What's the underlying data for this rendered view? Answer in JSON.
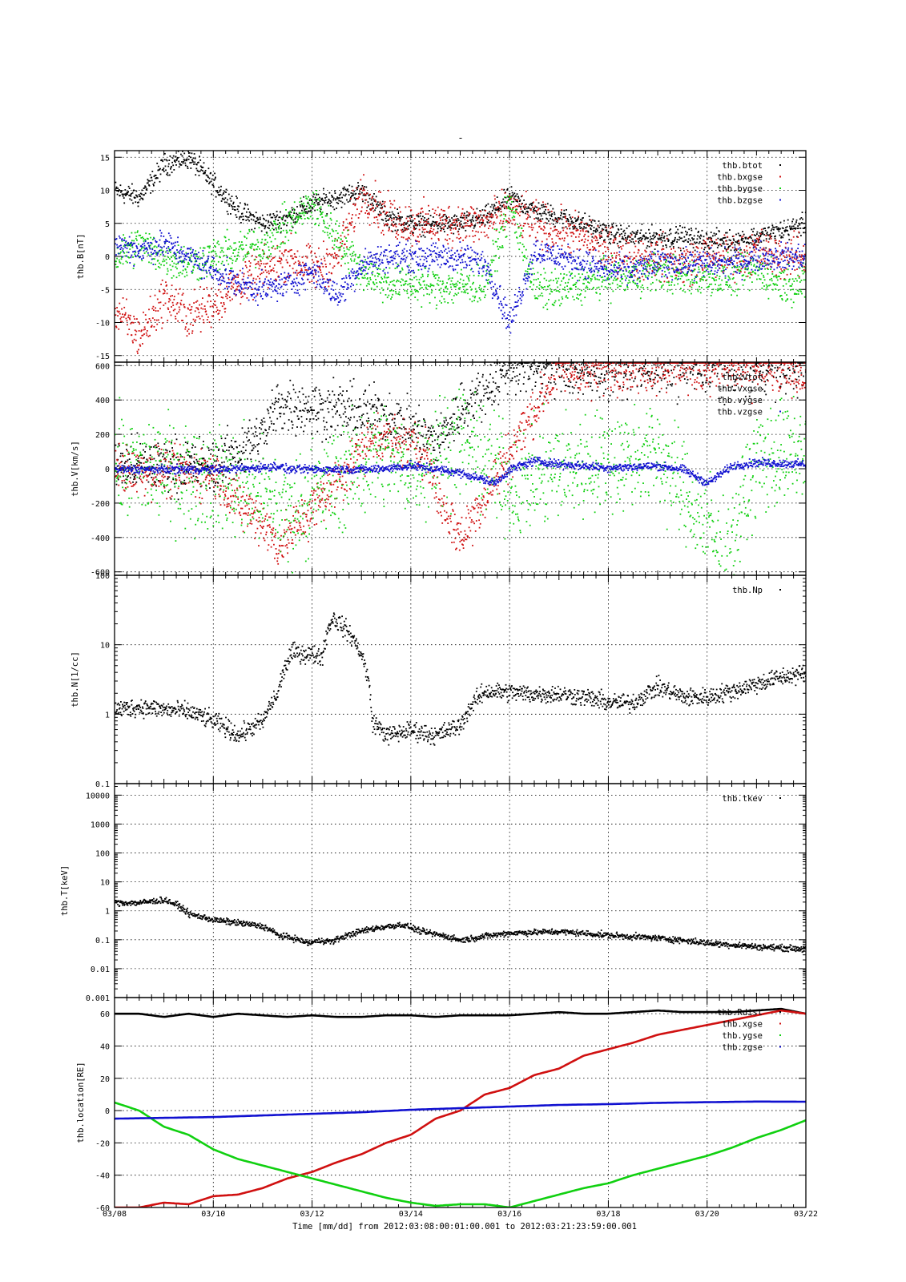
{
  "page_title": "-",
  "time_label": "Time [mm/dd]  from 2012:03:08:00:01:00.001  to  2012:03:21:23:59:00.001",
  "colors": {
    "black": "#000000",
    "red": "#d01010",
    "green": "#10d010",
    "blue": "#1010d0"
  },
  "chart_data": [
    {
      "type": "scatter",
      "ylabel": "thb.B[nT]",
      "ylim": [
        -16,
        16
      ],
      "yticks": [
        -15,
        -10,
        -5,
        0,
        5,
        10,
        15
      ],
      "ytick_labels": [
        "-15",
        "-10",
        "-5",
        "0",
        "5",
        "10",
        "15"
      ],
      "log": false,
      "xlim": [
        0,
        14
      ],
      "xticks": [
        0,
        2,
        4,
        6,
        8,
        10,
        12,
        14
      ],
      "xtick_labels": [
        "03/08",
        "03/10",
        "03/12",
        "03/14",
        "03/16",
        "03/18",
        "03/20",
        "03/22"
      ],
      "legend_position": "top-right",
      "series": [
        {
          "name": "thb.btot",
          "color": "black",
          "spread": 1.2,
          "x": [
            0,
            0.5,
            1,
            1.5,
            2,
            2.5,
            3,
            3.5,
            4,
            4.5,
            5,
            5.5,
            6,
            6.5,
            7,
            7.5,
            8,
            8.5,
            9,
            9.5,
            10,
            10.5,
            11,
            11.5,
            12,
            12.5,
            13,
            13.5,
            14
          ],
          "y": [
            10,
            9,
            14,
            15,
            11,
            7,
            5,
            6,
            8,
            9,
            10,
            6,
            5,
            5,
            5,
            6,
            9,
            7,
            6,
            5,
            3.5,
            3,
            3,
            3,
            2.5,
            2.5,
            3,
            4,
            5
          ]
        },
        {
          "name": "thb.bxgse",
          "color": "red",
          "spread": 2.5,
          "x": [
            0,
            0.5,
            1,
            1.5,
            2,
            2.5,
            3,
            3.5,
            4,
            4.5,
            5,
            5.5,
            6,
            6.5,
            7,
            7.5,
            8,
            8.5,
            9,
            9.5,
            10,
            10.5,
            11,
            11.5,
            12,
            12.5,
            13,
            13.5,
            14
          ],
          "y": [
            -8,
            -12,
            -6,
            -9,
            -7,
            -4,
            -2,
            0,
            -2,
            0,
            10,
            6,
            5,
            5,
            5,
            5,
            7,
            5,
            4,
            3,
            1,
            0,
            0,
            -1,
            0,
            0,
            1,
            0,
            0
          ]
        },
        {
          "name": "thb.bygse",
          "color": "green",
          "spread": 2.2,
          "x": [
            0,
            0.5,
            1,
            1.5,
            2,
            2.5,
            3,
            3.5,
            4,
            4.5,
            5,
            5.5,
            6,
            6.5,
            7,
            7.5,
            8,
            8.5,
            9,
            9.5,
            10,
            10.5,
            11,
            11.5,
            12,
            12.5,
            13,
            13.5,
            14
          ],
          "y": [
            0,
            2,
            0,
            -1,
            0,
            1,
            2,
            5,
            8,
            3,
            -2,
            -4,
            -4,
            -4.5,
            -4.5,
            -4,
            8,
            -5,
            -5,
            -4,
            -3,
            -3,
            -2,
            -3,
            -3,
            -3,
            -2,
            -4,
            -4
          ]
        },
        {
          "name": "thb.bzgse",
          "color": "blue",
          "spread": 1.6,
          "x": [
            0,
            0.5,
            1,
            1.5,
            2,
            2.5,
            3,
            3.5,
            4,
            4.5,
            5,
            5.5,
            6,
            6.5,
            7,
            7.5,
            8,
            8.5,
            9,
            9.5,
            10,
            10.5,
            11,
            11.5,
            12,
            12.5,
            13,
            13.5,
            14
          ],
          "y": [
            2,
            1,
            2,
            0,
            -2,
            -4,
            -5,
            -4,
            -2,
            -6,
            -1,
            0,
            0,
            0,
            0,
            -1,
            -10,
            1,
            0,
            -1,
            -2,
            -2,
            -1,
            -1,
            -1,
            -1,
            0,
            0,
            0
          ]
        }
      ]
    },
    {
      "type": "scatter",
      "ylabel": "thb.V[km/s]",
      "ylim": [
        -620,
        620
      ],
      "yticks": [
        -600,
        -400,
        -200,
        0,
        200,
        400,
        600
      ],
      "ytick_labels": [
        "-600",
        "-400",
        "-200",
        "0",
        "200",
        "400",
        "600"
      ],
      "log": false,
      "xlim": [
        0,
        14
      ],
      "xticks": [
        0,
        2,
        4,
        6,
        8,
        10,
        12,
        14
      ],
      "xtick_labels": [
        "03/08",
        "03/10",
        "03/12",
        "03/14",
        "03/16",
        "03/18",
        "03/20",
        "03/22"
      ],
      "legend_position": "top-right",
      "series": [
        {
          "name": "thb.vtot",
          "color": "black",
          "spread": 120,
          "x": [
            0,
            1,
            2,
            3,
            3.3,
            5.3,
            6,
            6.5,
            7,
            7.3,
            8,
            9,
            9.5,
            10,
            11,
            12,
            13,
            14
          ],
          "y": [
            20,
            30,
            20,
            200,
            380,
            320,
            250,
            150,
            350,
            420,
            600,
            600,
            550,
            600,
            600,
            600,
            600,
            600
          ]
        },
        {
          "name": "thb.vxgse",
          "color": "red",
          "spread": 110,
          "x": [
            0,
            1,
            2,
            2.5,
            3,
            3.3,
            5.3,
            5.8,
            6.3,
            6.6,
            7,
            9,
            9.5,
            10,
            11,
            12,
            13,
            14
          ],
          "y": [
            0,
            -10,
            -20,
            -200,
            -300,
            -450,
            200,
            150,
            100,
            -200,
            -400,
            600,
            550,
            600,
            600,
            600,
            580,
            560
          ]
        },
        {
          "name": "thb.vygse",
          "color": "green",
          "spread": 230,
          "x": [
            0,
            1,
            2,
            3,
            3.5,
            5.3,
            6,
            7,
            8,
            9,
            10,
            11,
            11.5,
            12,
            12.3,
            13,
            14
          ],
          "y": [
            10,
            0,
            -50,
            -150,
            -250,
            100,
            0,
            200,
            -100,
            0,
            50,
            100,
            -150,
            -300,
            -550,
            50,
            100
          ]
        },
        {
          "name": "thb.vzgse",
          "color": "blue",
          "spread": 18,
          "x": [
            0,
            1,
            2,
            3,
            3.3,
            3.5,
            4.5,
            5.2,
            6,
            7,
            7.7,
            8,
            8.5,
            9,
            10,
            11,
            11.5,
            12,
            12.5,
            13,
            14
          ],
          "y": [
            0,
            0,
            0,
            10,
            20,
            0,
            0,
            0,
            20,
            -20,
            -80,
            0,
            50,
            30,
            10,
            20,
            0,
            -80,
            20,
            40,
            30
          ]
        }
      ]
    },
    {
      "type": "scatter",
      "ylabel": "thb.N[1/cc]",
      "ylim": [
        0.1,
        100
      ],
      "yticks": [
        0.1,
        1,
        10,
        100
      ],
      "ytick_labels": [
        "0.1",
        "1",
        "10",
        "100"
      ],
      "log": true,
      "xlim": [
        0,
        14
      ],
      "xticks": [
        0,
        2,
        4,
        6,
        8,
        10,
        12,
        14
      ],
      "xtick_labels": [
        "03/08",
        "03/10",
        "03/12",
        "03/14",
        "03/16",
        "03/18",
        "03/20",
        "03/22"
      ],
      "legend_position": "top-right",
      "series": [
        {
          "name": "thb.Np",
          "color": "black",
          "spread": 0.1,
          "x": [
            0,
            0.5,
            1,
            1.5,
            2,
            2.5,
            3,
            3.3,
            3.6,
            4.2,
            4.4,
            5.2,
            5.5,
            6,
            6.5,
            7,
            7.5,
            8.5,
            9,
            9.5,
            10,
            10.5,
            11,
            11.5,
            12,
            12.5,
            13,
            13.5,
            14
          ],
          "y": [
            1.2,
            1.3,
            1.2,
            1.1,
            0.8,
            0.5,
            0.8,
            2,
            8,
            7,
            25,
            0.8,
            0.5,
            0.6,
            0.5,
            0.7,
            2.2,
            2,
            2,
            1.8,
            1.5,
            1.5,
            2.5,
            1.8,
            1.8,
            2.2,
            2.8,
            3.5,
            4
          ]
        }
      ]
    },
    {
      "type": "scatter",
      "ylabel": "thb.T[keV]",
      "ylim": [
        0.001,
        25000
      ],
      "yticks": [
        0.001,
        0.01,
        0.1,
        1,
        10,
        100,
        1000,
        10000
      ],
      "ytick_labels": [
        "0.001",
        "0.01",
        "0.1",
        "1",
        "10",
        "100",
        "1000",
        "10000"
      ],
      "log": true,
      "xlim": [
        0,
        14
      ],
      "xticks": [
        0,
        2,
        4,
        6,
        8,
        10,
        12,
        14
      ],
      "xtick_labels": [
        "03/08",
        "03/10",
        "03/12",
        "03/14",
        "03/16",
        "03/18",
        "03/20",
        "03/22"
      ],
      "legend_position": "top-right",
      "series": [
        {
          "name": "thb.tkev",
          "color": "black",
          "spread": 0.08,
          "x": [
            0,
            0.5,
            1,
            1.5,
            2,
            2.5,
            3,
            3.3,
            3.6,
            3.9,
            4.2,
            4.4,
            5.2,
            5.8,
            6.2,
            6.6,
            7,
            8,
            9,
            10,
            11,
            12,
            13,
            14
          ],
          "y": [
            2,
            2,
            2.5,
            0.8,
            0.5,
            0.4,
            0.3,
            0.15,
            0.12,
            0.08,
            0.1,
            0.09,
            0.25,
            0.35,
            0.2,
            0.15,
            0.1,
            0.18,
            0.2,
            0.15,
            0.12,
            0.08,
            0.06,
            0.05
          ]
        }
      ]
    },
    {
      "type": "line",
      "ylabel": "thb.location[RE]",
      "ylim": [
        -60,
        70
      ],
      "yticks": [
        -60,
        -40,
        -20,
        0,
        20,
        40,
        60
      ],
      "ytick_labels": [
        "-60",
        "-40",
        "-20",
        "0",
        "20",
        "40",
        "60"
      ],
      "log": false,
      "xlim": [
        0,
        14
      ],
      "xticks": [
        0,
        2,
        4,
        6,
        8,
        10,
        12,
        14
      ],
      "xtick_labels": [
        "03/08",
        "03/10",
        "03/12",
        "03/14",
        "03/16",
        "03/18",
        "03/20",
        "03/22"
      ],
      "legend_position": "top-right",
      "series": [
        {
          "name": "thb.Rdist",
          "color": "black",
          "x": [
            0,
            0.5,
            1,
            1.5,
            2,
            2.5,
            3,
            3.5,
            4,
            4.5,
            5,
            5.5,
            6,
            6.5,
            7,
            7.5,
            8,
            8.5,
            9,
            9.5,
            10,
            10.5,
            11,
            11.5,
            12,
            12.5,
            13,
            13.5,
            14
          ],
          "y": [
            60,
            60,
            58,
            60,
            58,
            60,
            59,
            58,
            59,
            58,
            58,
            59,
            59,
            58,
            59,
            59,
            59,
            60,
            61,
            60,
            60,
            61,
            62,
            61,
            61,
            61,
            62,
            63,
            60
          ]
        },
        {
          "name": "thb.xgse",
          "color": "red",
          "x": [
            0,
            0.5,
            1,
            1.5,
            2,
            2.5,
            3,
            3.5,
            4,
            4.5,
            5,
            5.5,
            6,
            6.5,
            7,
            7.5,
            8,
            8.5,
            9,
            9.5,
            10,
            10.5,
            11,
            11.5,
            12,
            12.5,
            13,
            13.5,
            14
          ],
          "y": [
            -60,
            -60,
            -57,
            -58,
            -53,
            -52,
            -48,
            -42,
            -38,
            -32,
            -27,
            -20,
            -15,
            -5,
            0,
            10,
            14,
            22,
            26,
            34,
            38,
            42,
            47,
            50,
            53,
            56,
            59,
            62,
            60
          ]
        },
        {
          "name": "thb.ygse",
          "color": "green",
          "x": [
            0,
            0.5,
            1,
            1.5,
            2,
            2.5,
            3,
            3.5,
            4,
            4.5,
            5,
            5.5,
            6,
            6.5,
            7,
            7.5,
            8,
            8.5,
            9,
            9.5,
            10,
            10.5,
            11,
            11.5,
            12,
            12.5,
            13,
            13.5,
            14
          ],
          "y": [
            5,
            0,
            -10,
            -15,
            -24,
            -30,
            -34,
            -38,
            -42,
            -46,
            -50,
            -54,
            -57,
            -59,
            -58,
            -58,
            -60,
            -56,
            -52,
            -48,
            -45,
            -40,
            -36,
            -32,
            -28,
            -23,
            -17,
            -12,
            -6
          ]
        },
        {
          "name": "thb.zgse",
          "color": "blue",
          "x": [
            0,
            1,
            2,
            3,
            4,
            5,
            6,
            7,
            8,
            9,
            10,
            11,
            12,
            13,
            14
          ],
          "y": [
            -5,
            -4.5,
            -4,
            -3,
            -2,
            -1,
            0.5,
            1.5,
            2.5,
            3.5,
            4,
            4.8,
            5.2,
            5.6,
            5.5
          ]
        }
      ]
    }
  ]
}
